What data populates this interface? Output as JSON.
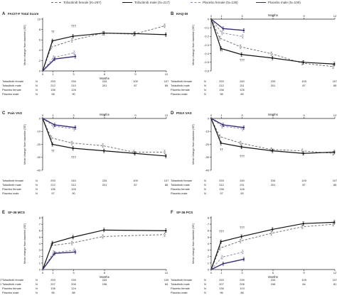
{
  "legend": [
    {
      "name": "Tofacitinib female (N=297)",
      "color": "#666666",
      "dash": "dashed"
    },
    {
      "name": "Tofacitinib male (N=217)",
      "color": "#111111",
      "dash": "solid"
    },
    {
      "name": "Placebo female (N=138)",
      "color": "#8a7fa8",
      "dash": "dashed"
    },
    {
      "name": "Placebo male (N=100)",
      "color": "#3b2a74",
      "dash": "solid"
    }
  ],
  "colors": {
    "tofa_female": "#666666",
    "tofa_male": "#111111",
    "pbo_female": "#8a7fa8",
    "pbo_male": "#3b2a74"
  },
  "chart_data": [
    {
      "type": "line",
      "panel": "A",
      "title": "FACIT-F Total Score",
      "xlabel": "Months",
      "ylabel": "Mean change from baseline (SE)",
      "ylim": [
        0,
        10
      ],
      "yticks": [
        0,
        2,
        4,
        6,
        8,
        10
      ],
      "yticklabels": [
        "0",
        "2",
        "4",
        "6",
        "8",
        "10"
      ],
      "x": [
        0,
        1,
        3,
        6,
        9,
        12
      ],
      "xticklabels": [
        "0",
        "1",
        "3",
        "6",
        "9",
        "12"
      ],
      "series": [
        {
          "name": "Tofacitinib female",
          "x": [
            0,
            1,
            3,
            6,
            9,
            12
          ],
          "values": [
            0,
            4.6,
            5.9,
            7.3,
            7.1,
            8.7
          ]
        },
        {
          "name": "Tofacitinib male",
          "x": [
            0,
            1,
            3,
            6,
            9,
            12
          ],
          "values": [
            0,
            5.8,
            6.7,
            7.3,
            7.2,
            7.0
          ]
        },
        {
          "name": "Placebo female",
          "x": [
            0,
            1,
            3
          ],
          "values": [
            0,
            2.6,
            3.5
          ]
        },
        {
          "name": "Placebo male",
          "x": [
            0,
            1,
            3
          ],
          "values": [
            0,
            2.3,
            2.8
          ]
        }
      ],
      "annotations": [
        {
          "x": 1,
          "y": 7.3,
          "text": "††"
        },
        {
          "x": 3,
          "y": 8.4,
          "text": "†††"
        }
      ],
      "n_table": {
        "header": "N",
        "rows": [
          {
            "label": "Tofacitinib female",
            "values": [
              "293",
              "239",
              "234",
              "109",
              "107"
            ]
          },
          {
            "label": "Tofacitinib male",
            "values": [
              "212",
              "210",
              "201",
              "87",
              "85"
            ]
          },
          {
            "label": "Placebo female",
            "values": [
              "136",
              "126",
              "",
              "",
              ""
            ]
          },
          {
            "label": "Placebo male",
            "values": [
              "98",
              "90",
              "",
              "",
              ""
            ]
          }
        ]
      }
    },
    {
      "type": "line",
      "panel": "B",
      "title": "HAQ-DI",
      "xlabel": "Months",
      "ylabel": "Mean change from baseline (SE)",
      "ylim": [
        -0.6,
        0
      ],
      "yticks": [
        0,
        -0.1,
        -0.2,
        -0.3,
        -0.4,
        -0.5,
        -0.6
      ],
      "yticklabels": [
        "0",
        "-0.1",
        "-0.2",
        "-0.3",
        "-0.4",
        "-0.5",
        "-0.6"
      ],
      "x": [
        0,
        1,
        3,
        6,
        9,
        12
      ],
      "xticklabels": [
        "0",
        "1",
        "3",
        "6",
        "9",
        "12"
      ],
      "series": [
        {
          "name": "Tofacitinib female",
          "x": [
            0,
            1,
            3,
            6,
            9,
            12
          ],
          "values": [
            0,
            -0.22,
            -0.32,
            -0.4,
            -0.51,
            -0.55
          ]
        },
        {
          "name": "Tofacitinib male",
          "x": [
            0,
            1,
            3,
            6,
            9,
            12
          ],
          "values": [
            0,
            -0.34,
            -0.41,
            -0.45,
            -0.5,
            -0.52
          ]
        },
        {
          "name": "Placebo female",
          "x": [
            0,
            1,
            3
          ],
          "values": [
            0,
            -0.16,
            -0.2
          ]
        },
        {
          "name": "Placebo male",
          "x": [
            0,
            1,
            3
          ],
          "values": [
            0,
            -0.11,
            -0.13
          ]
        }
      ],
      "annotations": [
        {
          "x": 1,
          "y": -0.38,
          "text": "††"
        },
        {
          "x": 3,
          "y": -0.49,
          "text": "†††"
        }
      ],
      "n_table": {
        "header": "N",
        "rows": [
          {
            "label": "Tofacitinib female",
            "values": [
              "293",
              "240",
              "233",
              "109",
              "107"
            ]
          },
          {
            "label": "Tofacitinib male",
            "values": [
              "212",
              "211",
              "201",
              "87",
              "85"
            ]
          },
          {
            "label": "Placebo female",
            "values": [
              "136",
              "126",
              "",
              "",
              ""
            ]
          },
          {
            "label": "Placebo male",
            "values": [
              "98",
              "89",
              "",
              "",
              ""
            ]
          }
        ]
      }
    },
    {
      "type": "line",
      "panel": "C",
      "title": "Pain VAS",
      "xlabel": "Months",
      "ylabel": "Mean change from baseline (SE)",
      "ylim": [
        -40,
        0
      ],
      "yticks": [
        0,
        -10,
        -20,
        -30,
        -40
      ],
      "yticklabels": [
        "0",
        "-10",
        "-20",
        "-30",
        "-40"
      ],
      "x": [
        0,
        1,
        3,
        6,
        9,
        12
      ],
      "xticklabels": [
        "0",
        "1",
        "3",
        "6",
        "9",
        "12"
      ],
      "series": [
        {
          "name": "Tofacitinib female",
          "x": [
            0,
            1,
            3,
            6,
            9,
            12
          ],
          "values": [
            0,
            -15,
            -19,
            -21,
            -26,
            -26
          ]
        },
        {
          "name": "Tofacitinib male",
          "x": [
            0,
            1,
            3,
            6,
            9,
            12
          ],
          "values": [
            0,
            -20,
            -23,
            -25,
            -27,
            -29
          ]
        },
        {
          "name": "Placebo female",
          "x": [
            0,
            1,
            3
          ],
          "values": [
            0,
            -6,
            -8
          ]
        },
        {
          "name": "Placebo male",
          "x": [
            0,
            1,
            3
          ],
          "values": [
            0,
            -5,
            -7
          ]
        }
      ],
      "annotations": [
        {
          "x": 1,
          "y": -26,
          "text": "††"
        },
        {
          "x": 3,
          "y": -31,
          "text": "†††"
        }
      ],
      "n_table": {
        "header": "N",
        "rows": [
          {
            "label": "Tofacitinib female",
            "values": [
              "293",
              "240",
              "234",
              "109",
              "107"
            ]
          },
          {
            "label": "Tofacitinib male",
            "values": [
              "212",
              "212",
              "201",
              "87",
              "85"
            ]
          },
          {
            "label": "Placebo female",
            "values": [
              "136",
              "126",
              "",
              "",
              ""
            ]
          },
          {
            "label": "Placebo male",
            "values": [
              "97",
              "90",
              "",
              "",
              ""
            ]
          }
        ]
      }
    },
    {
      "type": "line",
      "panel": "D",
      "title": "PtGA VAS",
      "xlabel": "Months",
      "ylabel": "Mean change from baseline (SE)",
      "ylim": [
        -40,
        0
      ],
      "yticks": [
        0,
        -10,
        -20,
        -30,
        -40
      ],
      "yticklabels": [
        "0",
        "-10",
        "-20",
        "-30",
        "-40"
      ],
      "x": [
        0,
        1,
        3,
        6,
        9,
        12
      ],
      "xticklabels": [
        "0",
        "1",
        "3",
        "6",
        "9",
        "12"
      ],
      "series": [
        {
          "name": "Tofacitinib female",
          "x": [
            0,
            1,
            3,
            6,
            9,
            12
          ],
          "values": [
            0,
            -14,
            -19,
            -24,
            -25,
            -27
          ]
        },
        {
          "name": "Tofacitinib male",
          "x": [
            0,
            1,
            3,
            6,
            9,
            12
          ],
          "values": [
            0,
            -19,
            -22,
            -25,
            -27,
            -26
          ]
        },
        {
          "name": "Placebo female",
          "x": [
            0,
            1,
            3
          ],
          "values": [
            0,
            -6,
            -8
          ]
        },
        {
          "name": "Placebo male",
          "x": [
            0,
            1,
            3
          ],
          "values": [
            0,
            -5,
            -7
          ]
        }
      ],
      "annotations": [
        {
          "x": 1,
          "y": -25,
          "text": "††"
        },
        {
          "x": 3,
          "y": -30,
          "text": "†††"
        }
      ],
      "n_table": {
        "header": "N",
        "rows": [
          {
            "label": "Tofacitinib female",
            "values": [
              "293",
              "240",
              "234",
              "109",
              "107"
            ]
          },
          {
            "label": "Tofacitinib male",
            "values": [
              "212",
              "211",
              "201",
              "87",
              "85"
            ]
          },
          {
            "label": "Placebo female",
            "values": [
              "136",
              "126",
              "",
              "",
              ""
            ]
          },
          {
            "label": "Placebo male",
            "values": [
              "97",
              "90",
              "",
              "",
              ""
            ]
          }
        ]
      }
    },
    {
      "type": "line",
      "panel": "E",
      "title": "SF-36 MCS",
      "xlabel": "Months",
      "ylabel": "Mean change from baseline (SE)",
      "ylim": [
        0,
        8
      ],
      "yticks": [
        0,
        1,
        2,
        3,
        4,
        5,
        6,
        7,
        8
      ],
      "yticklabels": [
        "0",
        "1",
        "2",
        "3",
        "4",
        "5",
        "6",
        "7",
        "8"
      ],
      "x": [
        0,
        1,
        3,
        6,
        12
      ],
      "xticklabels": [
        "0",
        "1",
        "3",
        "6",
        "12"
      ],
      "series": [
        {
          "name": "Tofacitinib female",
          "x": [
            0,
            1,
            3,
            6,
            12
          ],
          "values": [
            0,
            3.7,
            4.1,
            5.1,
            5.4
          ]
        },
        {
          "name": "Tofacitinib male",
          "x": [
            0,
            1,
            3,
            6,
            12
          ],
          "values": [
            0,
            4.1,
            5.0,
            6.1,
            6.0
          ]
        },
        {
          "name": "Placebo female",
          "x": [
            0,
            1,
            3
          ],
          "values": [
            0,
            2.6,
            3.0
          ]
        },
        {
          "name": "Placebo male",
          "x": [
            0,
            1,
            3
          ],
          "values": [
            0,
            2.5,
            2.7
          ]
        }
      ],
      "annotations": [],
      "n_table": {
        "header": "N",
        "rows": [
          {
            "label": "Tofacitinib female",
            "values": [
              "293",
              "239",
              "234",
              "109",
              "107"
            ]
          },
          {
            "label": "Tofacitinib male",
            "values": [
              "207",
              "206",
              "196",
              "84",
              "81"
            ]
          },
          {
            "label": "Placebo female",
            "values": [
              "136",
              "124",
              "",
              "",
              ""
            ]
          },
          {
            "label": "Placebo male",
            "values": [
              "96",
              "88",
              "",
              "",
              ""
            ]
          }
        ]
      }
    },
    {
      "type": "line",
      "panel": "F",
      "title": "SF-36 PCS",
      "xlabel": "Months",
      "ylabel": "Mean change from baseline (SE)",
      "ylim": [
        0,
        8
      ],
      "yticks": [
        0,
        1,
        2,
        3,
        4,
        5,
        6,
        7,
        8
      ],
      "yticklabels": [
        "0",
        "1",
        "2",
        "3",
        "4",
        "5",
        "6",
        "7",
        "8"
      ],
      "x": [
        0,
        1,
        3,
        6,
        9,
        12
      ],
      "xticklabels": [
        "0",
        "1",
        "3",
        "6",
        "9",
        "12"
      ],
      "series": [
        {
          "name": "Tofacitinib female",
          "x": [
            0,
            1,
            3,
            6,
            9,
            12
          ],
          "values": [
            0,
            3.3,
            4.4,
            5.6,
            6.6,
            7.0
          ]
        },
        {
          "name": "Tofacitinib male",
          "x": [
            0,
            1,
            3,
            6,
            9,
            12
          ],
          "values": [
            0,
            4.3,
            5.1,
            6.2,
            7.1,
            7.3
          ]
        },
        {
          "name": "Placebo female",
          "x": [
            0,
            1,
            3
          ],
          "values": [
            0,
            1.9,
            2.7
          ]
        },
        {
          "name": "Placebo male",
          "x": [
            0,
            1,
            3
          ],
          "values": [
            0,
            0.9,
            1.6
          ]
        }
      ],
      "annotations": [
        {
          "x": 1,
          "y": 5.7,
          "text": "†††"
        },
        {
          "x": 3,
          "y": 6.3,
          "text": "†††"
        }
      ],
      "n_table": {
        "header": "N",
        "rows": [
          {
            "label": "Tofacitinib female",
            "values": [
              "293",
              "239",
              "234",
              "109",
              "107"
            ]
          },
          {
            "label": "Tofacitinib male",
            "values": [
              "207",
              "206",
              "196",
              "84",
              "81"
            ]
          },
          {
            "label": "Placebo female",
            "values": [
              "136",
              "124",
              "",
              "",
              ""
            ]
          },
          {
            "label": "Placebo male",
            "values": [
              "96",
              "88",
              "",
              "",
              ""
            ]
          }
        ]
      }
    }
  ]
}
